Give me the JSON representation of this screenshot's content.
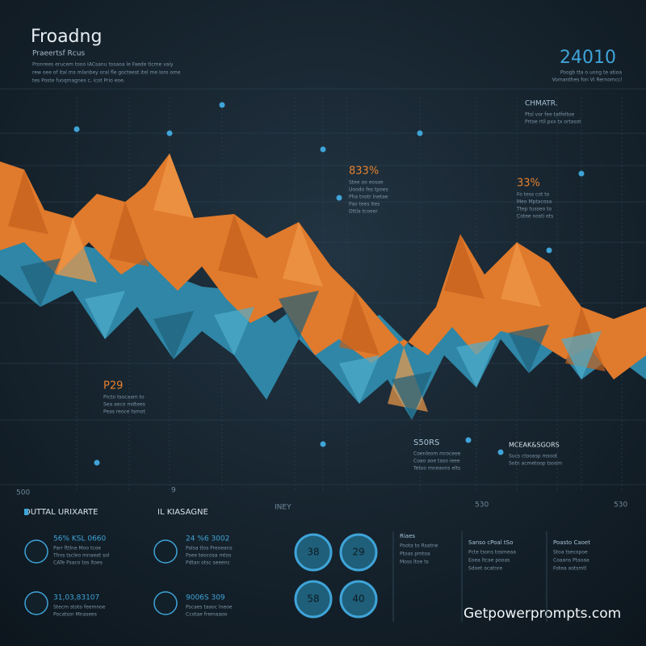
{
  "header": {
    "title": "Froadng",
    "subtitle": "Praeertsf Rcus",
    "body": [
      "Pronrees erucem tooo IACsanu tosaoa le Faede ticme vaiy",
      "rew oee of ital ms mlanbey oral fle gocteest itel me Ioro ome",
      "tes Poste fuoqmagnes c, icot Prio eoe."
    ]
  },
  "summary": {
    "value": "24010",
    "caption": [
      "Poogb tta o uong te atioa",
      "Vomanthes fon VI Rernomccl"
    ]
  },
  "callouts": [
    {
      "title": "CHMATR.",
      "lines": [
        "Ptsl vor fee tatfeltoe",
        "Prtoe rtil pxx tx ortasot"
      ]
    },
    {
      "title": "833%",
      "lines": [
        "Stee oo eosae",
        "Uoodo fes tpoes",
        "Pha tnotr lnetae",
        "Pao tees Ites",
        "Dttla tcoeer"
      ]
    },
    {
      "title": "33%",
      "lines": [
        "Fo tess cot to",
        "Meo Mptacosa",
        "Ttep tusseo to",
        "Cotee nosti ets"
      ]
    },
    {
      "title": "P29",
      "lines": [
        "Prcto tsocaam to",
        "Sea aeco mdtees",
        "Peas reoce tsmot"
      ]
    },
    {
      "title": "S50RS",
      "lines": [
        "Coenleom mroceee",
        "Coao aoe taso ieee",
        "Tetoo mneaons elts"
      ]
    },
    {
      "title": "MCEAK&SGORS",
      "lines": [
        "Sucs ctooasp msoot",
        "Sotn acmetoop tsoom"
      ]
    }
  ],
  "axis_labels": [
    "500",
    "9",
    "INEY",
    "530",
    "530"
  ],
  "sections": [
    "DUTTAL URIXARTE",
    "IL KIASAGNE"
  ],
  "stats": [
    {
      "title": "56% KSL 0660",
      "lines": [
        "Parr fttlne Moo tcoe",
        "Thns tscleo mnaeat sol",
        "CATe Psaco tos ltoes"
      ]
    },
    {
      "title": "24 %6 3002",
      "lines": [
        "Palsa tlos Preoeans",
        "Psee teocosa mtos",
        "Pdtan otsc seeenc"
      ]
    },
    {
      "title": "31,03,83107",
      "lines": [
        "Stecm stoto feemnoe",
        "Pocatsor Mnasees"
      ]
    },
    {
      "title": "9006S 309",
      "lines": [
        "Pscaes taaoc lneoe",
        "Ccotae fremaaoo"
      ]
    }
  ],
  "rings": [
    "38",
    "29",
    "58",
    "40"
  ],
  "side": [
    {
      "title": "Riaes",
      "lines": [
        "Poota to Rsatne",
        "Ptoas pmtoa",
        "Moss ltoe ts"
      ]
    },
    {
      "title": "Sanso cPoal tSo",
      "lines": [
        "Pcte tsons tosmeaa",
        "Eoea ltcae pooas",
        "Sdoet ocatnre"
      ]
    },
    {
      "title": "Poasto Caoet",
      "lines": [
        "Stoa tsecopoe",
        "Coaans Ptaoaa",
        "Fotea aotsmtl"
      ]
    }
  ],
  "watermark": "Getpowerprompts.com"
}
